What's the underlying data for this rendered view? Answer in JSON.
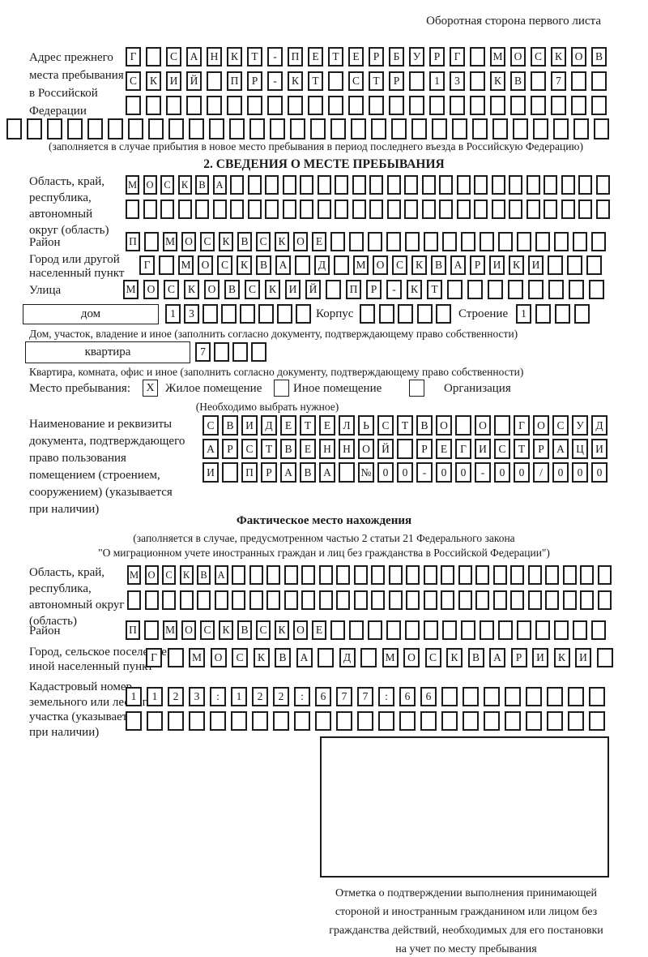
{
  "page": {
    "title": "Оборотная сторона первого листа"
  },
  "prev_address": {
    "label": "Адрес прежнего\nместа пребывания\nв Российской\nФедерации",
    "rows": [
      "Г САНКТ-ПЕТЕРБУРГ МОСКОВ",
      "СКИЙ ПР-КТ СТР 13 КВ 7",
      "",
      ""
    ],
    "note": "(заполняется в случае прибытия в новое место пребывания в период последнего въезда в Российскую Федерацию)"
  },
  "stay_info": {
    "heading": "2. СВЕДЕНИЯ О МЕСТЕ ПРЕБЫВАНИЯ",
    "region": {
      "label": "Область, край,\nреспублика,\nавтономный\nокруг (область)",
      "row1": "МОСКВА",
      "row2": ""
    },
    "district": {
      "label": "Район",
      "row": "П МОСКВСКОЕ"
    },
    "city": {
      "label": "Город или другой\nнаселенный пункт",
      "row": "Г МОСКВА Д МОСКВАРИКИ"
    },
    "street": {
      "label": "Улица",
      "row": "МОСКОВСКИЙ ПР-КТ"
    },
    "house": {
      "box_label": "дом",
      "cells": "13",
      "korpus_label": "Корпус",
      "korpus_cells": "",
      "stroenie_label": "Строение",
      "stroenie_cells": "1",
      "note": "Дом, участок, владение и иное (заполнить согласно документу, подтверждающему право собственности)"
    },
    "apartment": {
      "box_label": "квартира",
      "cells": "7",
      "note": "Квартира, комната, офис и иное (заполнить согласно документу, подтверждающему право собственности)"
    },
    "stay_place": {
      "label": "Место пребывания:",
      "options": [
        {
          "label": "Жилое помещение",
          "checked": "X"
        },
        {
          "label": "Иное помещение",
          "checked": ""
        },
        {
          "label": "Организация",
          "checked": ""
        }
      ],
      "note": "(Необходимо выбрать нужное)"
    },
    "document": {
      "label": "Наименование и реквизиты\nдокумента, подтверждающего\nправо пользования\nпомещением (строением,\nсооружением) (указывается\nпри наличии)",
      "rows": [
        "СВИДЕТЕЛЬСТВО О ГОСУД",
        "АРСТВЕННОЙ РЕГИСТРАЦИ",
        "И ПРАВА №00-00-00/000"
      ]
    }
  },
  "actual_location": {
    "heading": "Фактическое место нахождения",
    "note1": "(заполняется в случае, предусмотренном частью 2 статьи 21 Федерального закона",
    "note2": "\"О миграционном учете иностранных граждан и лиц без гражданства в Российской Федерации\")",
    "region": {
      "label": "Область, край,\nреспублика,\nавтономный округ\n(область)",
      "row1": "МОСКВА",
      "row2": ""
    },
    "district": {
      "label": "Район",
      "row": "П МОСКВСКОЕ"
    },
    "city": {
      "label": "Город, сельское поселение,\nиной населенный пункт",
      "row": "Г МОСКВА Д МОСКВАРИКИ"
    },
    "cadastre": {
      "label": "Кадастровый номер\nземельного или лесного\nучастка (указывается\nпри наличии)",
      "row1": "1123:122:677:66",
      "row2": ""
    },
    "stamp_note": "Отметка о подтверждении выполнения принимающей\nстороной и иностранным гражданином или лицом без\nгражданства действий, необходимых для его постановки\nна учет по месту пребывания"
  }
}
